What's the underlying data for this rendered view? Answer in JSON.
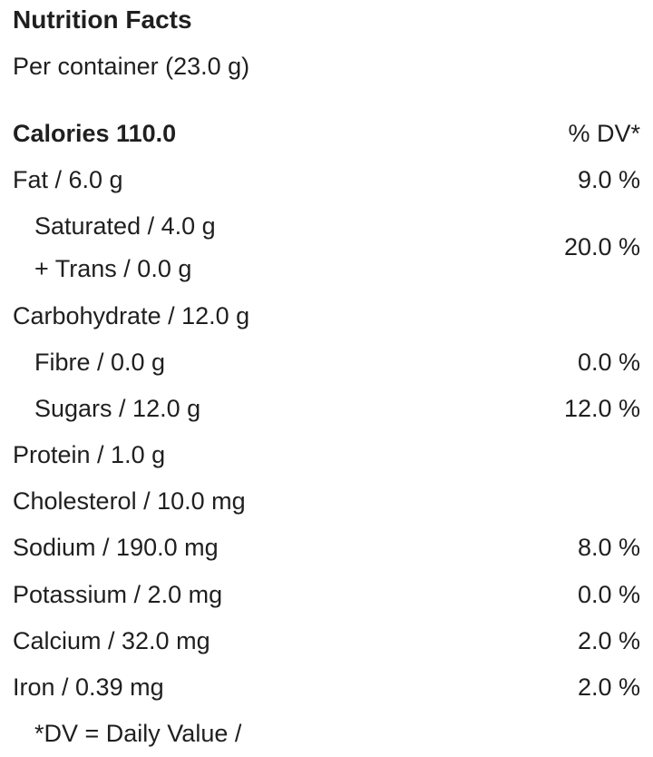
{
  "header": {
    "title": "Nutrition Facts",
    "subtitle": "Per container (23.0 g)"
  },
  "calories": {
    "label": "Calories 110.0",
    "dv_header": "% DV*"
  },
  "rows": [
    {
      "label": "Fat / 6.0 g",
      "dv": "9.0 %"
    },
    {
      "label": "Saturated / 4.0 g",
      "label2": "+ Trans / 0.0 g",
      "dv": "20.0 %"
    },
    {
      "label": "Carbohydrate / 12.0 g"
    },
    {
      "label": "Fibre / 0.0 g",
      "dv": "0.0 %"
    },
    {
      "label": "Sugars / 12.0 g",
      "dv": "12.0 %"
    },
    {
      "label": "Protein / 1.0 g"
    },
    {
      "label": "Cholesterol / 10.0 mg"
    },
    {
      "label": "Sodium / 190.0 mg",
      "dv": "8.0 %"
    },
    {
      "label": "Potassium / 2.0 mg",
      "dv": "0.0 %"
    },
    {
      "label": "Calcium / 32.0 mg",
      "dv": "2.0 %"
    },
    {
      "label": "Iron / 0.39 mg",
      "dv": "2.0 %"
    }
  ],
  "footnote": "*DV = Daily Value /"
}
